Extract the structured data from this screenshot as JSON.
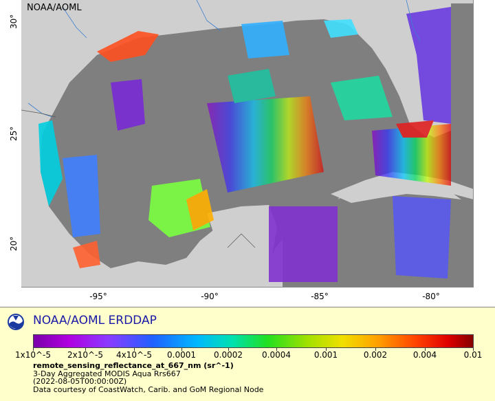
{
  "map": {
    "corner_label": "NOAA/AOML",
    "lat_ticks": [
      "30°",
      "25°",
      "20°"
    ],
    "lon_ticks": [
      "-95°",
      "-90°",
      "-85°",
      "-80°"
    ]
  },
  "legend": {
    "brand": "NOAA/AOML ERDDAP",
    "logo_icon": "noaa-logo-icon",
    "scale_labels": [
      "1x10^-5",
      "2x10^-5",
      "4x10^-5",
      "0.0001",
      "0.0002",
      "0.0004",
      "0.001",
      "0.002",
      "0.004",
      "0.01"
    ],
    "variable": "remote_sensing_reflectance_at_667_nm (sr^-1)",
    "line1": "3-Day Aggregated MODIS Aqua Rrs667",
    "line2": "(2022-08-05T00:00:00Z)",
    "line3": "Data courtesy of CoastWatch, Carib. and GoM Regional Node"
  },
  "colors": {
    "land": "#cfcfcf",
    "ocean_nodata": "#7f7f7f",
    "panel": "#ffffcc",
    "brand": "#1a1aa6"
  }
}
